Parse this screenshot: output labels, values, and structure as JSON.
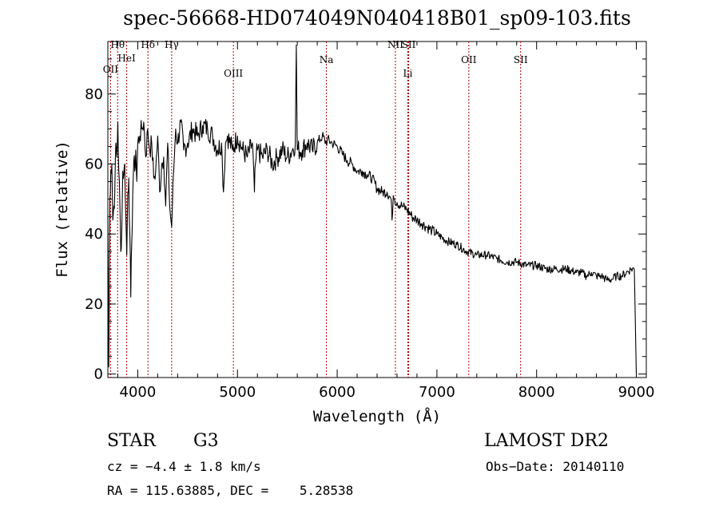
{
  "chart_data": {
    "type": "line",
    "title": "spec-56668-HD074049N040418B01_sp09-103.fits",
    "xlabel": "Wavelength (Å)",
    "ylabel": "Flux (relative)",
    "xlim": [
      3700,
      9100
    ],
    "ylim": [
      -1,
      95
    ],
    "xticks": [
      4000,
      5000,
      6000,
      7000,
      8000,
      9000
    ],
    "yticks": [
      0,
      20,
      40,
      60,
      80
    ],
    "grid": false,
    "series": [
      {
        "color": "#000000",
        "x": [
          3700,
          3710,
          3720,
          3730,
          3740,
          3750,
          3760,
          3770,
          3780,
          3790,
          3800,
          3810,
          3820,
          3830,
          3840,
          3850,
          3860,
          3870,
          3880,
          3890,
          3900,
          3910,
          3920,
          3930,
          3940,
          3950,
          3960,
          3970,
          3980,
          3990,
          4000,
          4020,
          4040,
          4060,
          4080,
          4100,
          4120,
          4140,
          4160,
          4180,
          4200,
          4220,
          4240,
          4260,
          4280,
          4300,
          4320,
          4340,
          4360,
          4380,
          4400,
          4430,
          4460,
          4500,
          4550,
          4600,
          4650,
          4700,
          4750,
          4800,
          4840,
          4860,
          4880,
          4900,
          4950,
          5000,
          5050,
          5100,
          5150,
          5170,
          5180,
          5200,
          5250,
          5300,
          5350,
          5400,
          5450,
          5500,
          5550,
          5580,
          5590,
          5600,
          5650,
          5700,
          5750,
          5800,
          5850,
          5890,
          5900,
          5950,
          6000,
          6050,
          6100,
          6150,
          6200,
          6250,
          6300,
          6350,
          6400,
          6450,
          6500,
          6540,
          6550,
          6563,
          6575,
          6600,
          6650,
          6700,
          6750,
          6800,
          6850,
          6900,
          6950,
          7000,
          7100,
          7200,
          7300,
          7400,
          7500,
          7600,
          7700,
          7800,
          7900,
          8000,
          8100,
          8200,
          8300,
          8400,
          8450,
          8500,
          8550,
          8600,
          8650,
          8700,
          8750,
          8800,
          8850,
          8900,
          8950,
          8980,
          9000
        ],
        "y": [
          45,
          2,
          50,
          58,
          60,
          44,
          48,
          52,
          66,
          62,
          72,
          58,
          49,
          35,
          42,
          58,
          57,
          60,
          45,
          34,
          52,
          56,
          40,
          22,
          38,
          52,
          61,
          58,
          64,
          55,
          66,
          68,
          70,
          72,
          62,
          70,
          64,
          66,
          56,
          58,
          68,
          52,
          60,
          62,
          48,
          66,
          48,
          42,
          58,
          70,
          66,
          72,
          64,
          66,
          70,
          68,
          71,
          70,
          68,
          64,
          66,
          52,
          66,
          68,
          64,
          68,
          64,
          62,
          66,
          52,
          60,
          64,
          62,
          64,
          60,
          62,
          64,
          62,
          64,
          66,
          94,
          64,
          64,
          66,
          64,
          66,
          68,
          66,
          67,
          66,
          65,
          63,
          61,
          60,
          58,
          58,
          57,
          56,
          53,
          52,
          52,
          50,
          44,
          51,
          50,
          49,
          48,
          47,
          45,
          44,
          43,
          42,
          41,
          40,
          38,
          37,
          35,
          34,
          34,
          33,
          32,
          32,
          31,
          31,
          30,
          30,
          30,
          29,
          29,
          28,
          29,
          28,
          28,
          27,
          27,
          28,
          28,
          29,
          30,
          30,
          0
        ]
      }
    ],
    "line_markers": [
      {
        "label": "Hθ",
        "x": 3798
      },
      {
        "label": "OII",
        "x": 3727
      },
      {
        "label": "HeI",
        "x": 3889
      },
      {
        "label": "Hδ",
        "x": 4102
      },
      {
        "label": "Hγ",
        "x": 4340
      },
      {
        "label": "OIII",
        "x": 4959
      },
      {
        "label": "Na",
        "x": 5892
      },
      {
        "label": "NII",
        "x": 6584
      },
      {
        "label": "SII",
        "x": 6717
      },
      {
        "label": "Li",
        "x": 6708
      },
      {
        "label": "OII",
        "x": 7320
      },
      {
        "label": "SII",
        "x": 7840
      }
    ]
  },
  "info": {
    "object_type": "STAR",
    "subclass": "G3",
    "survey": "LAMOST DR2",
    "cz": "cz = −4.4 ± 1.8 km/s",
    "obs_date": "Obs−Date: 20140110",
    "radec": "RA = 115.63885, DEC =    5.28538"
  }
}
